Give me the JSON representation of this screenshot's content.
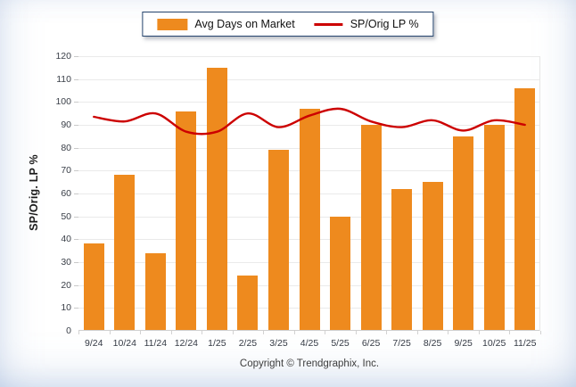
{
  "legend": {
    "bar_label": "Avg Days on Market",
    "line_label": "SP/Orig LP %"
  },
  "y_axis_title": "SP/Orig. LP %",
  "footer": "Copyright © Trendgraphix, Inc.",
  "colors": {
    "bar": "#EE8A1E",
    "line": "#CC0000",
    "grid": "#EAEAEA",
    "axis": "#CFCFCF",
    "tick_text": "#3B4049"
  },
  "chart_data": {
    "type": "bar",
    "subtype": "bar+line-combo",
    "categories": [
      "9/24",
      "10/24",
      "11/24",
      "12/24",
      "1/25",
      "2/25",
      "3/25",
      "4/25",
      "5/25",
      "6/25",
      "7/25",
      "8/25",
      "9/25",
      "10/25",
      "11/25"
    ],
    "series": [
      {
        "name": "Avg Days on Market",
        "type": "bar",
        "axis_units": "days",
        "values": [
          38,
          68,
          34,
          96,
          115,
          24,
          79,
          97,
          50,
          90,
          62,
          65,
          85,
          90,
          106
        ]
      },
      {
        "name": "SP/Orig LP %",
        "type": "line",
        "axis_units": "percent",
        "values": [
          93.5,
          91.5,
          95,
          87,
          87,
          95,
          89,
          94,
          97,
          91.5,
          89,
          92,
          87.5,
          92,
          90
        ]
      }
    ],
    "title": "",
    "xlabel": "",
    "ylabel": "SP/Orig. LP %",
    "ylim": [
      0,
      120
    ],
    "ytick_step": 10,
    "grid": true,
    "legend_position": "top-center",
    "line_smoothed": true
  }
}
